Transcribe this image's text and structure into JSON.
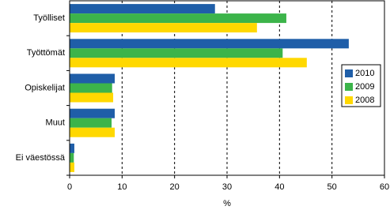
{
  "chart_data": {
    "type": "hbar",
    "categories": [
      "Työlliset",
      "Työttömät",
      "Opiskelijat",
      "Muut",
      "Ei väestössä"
    ],
    "series": [
      {
        "name": "2010",
        "color": "#1f5ea8",
        "values": [
          27.7,
          53.2,
          8.6,
          8.6,
          0.9
        ]
      },
      {
        "name": "2009",
        "color": "#3cb44a",
        "values": [
          41.3,
          40.6,
          8.1,
          8.0,
          0.8
        ]
      },
      {
        "name": "2008",
        "color": "#ffd800",
        "values": [
          35.7,
          45.2,
          8.3,
          8.6,
          0.9
        ]
      }
    ],
    "xlabel": "%",
    "xlim": [
      0,
      60
    ],
    "xticks": [
      0,
      10,
      20,
      30,
      40,
      50,
      60
    ],
    "grid": true,
    "legend": "right"
  }
}
